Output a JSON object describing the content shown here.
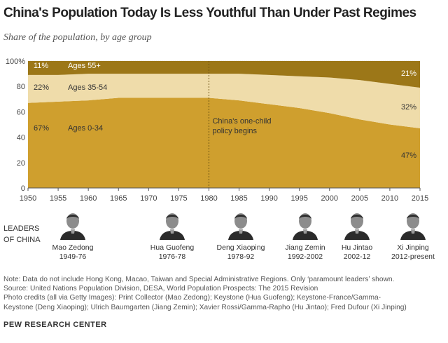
{
  "title": "China's Population Today Is Less Youthful Than Under Past Regimes",
  "subtitle": "Share of the population, by age group",
  "chart_data": {
    "type": "area",
    "stacked": true,
    "x": [
      1950,
      1955,
      1960,
      1965,
      1970,
      1975,
      1980,
      1985,
      1990,
      1995,
      2000,
      2005,
      2010,
      2015
    ],
    "series": [
      {
        "name": "Ages 0-34",
        "color": "#cf9f2e",
        "values": [
          67,
          68,
          69,
          71,
          71,
          71,
          71,
          69,
          66,
          63,
          59,
          54,
          50,
          47
        ]
      },
      {
        "name": "Ages 35-54",
        "color": "#efdcaa",
        "values": [
          22,
          21,
          21,
          19,
          19,
          19,
          19,
          21,
          23,
          25,
          28,
          31,
          32,
          32
        ]
      },
      {
        "name": "Ages 55+",
        "color": "#9c7718",
        "values": [
          11,
          11,
          10,
          10,
          10,
          10,
          10,
          10,
          11,
          12,
          13,
          15,
          18,
          21
        ]
      }
    ],
    "ylim": [
      0,
      100
    ],
    "yticks": [
      "0",
      "20",
      "40",
      "60",
      "80",
      "100%"
    ],
    "xticks": [
      "1950",
      "1955",
      "1960",
      "1965",
      "1970",
      "1975",
      "1980",
      "1985",
      "1990",
      "1995",
      "2000",
      "2005",
      "2010",
      "2015"
    ],
    "start_labels": [
      "67%",
      "22%",
      "11%"
    ],
    "end_labels": [
      "47%",
      "32%",
      "21%"
    ],
    "annotation": {
      "x": 1980,
      "lines": [
        "China's one-child",
        "policy begins"
      ]
    },
    "grid": true
  },
  "leaders_label_lines": [
    "LEADERS",
    "OF CHINA"
  ],
  "leaders": [
    {
      "name": "Mao Zedong",
      "years": "1949-76"
    },
    {
      "name": "Hua Guofeng",
      "years": "1976-78"
    },
    {
      "name": "Deng Xiaoping",
      "years": "1978-92"
    },
    {
      "name": "Jiang Zemin",
      "years": "1992-2002"
    },
    {
      "name": "Hu Jintao",
      "years": "2002-12"
    },
    {
      "name": "Xi Jinping",
      "years": "2012-present"
    }
  ],
  "notes": {
    "note": "Note: Data do not include Hong Kong, Macao, Taiwan and Special Administrative Regions. Only ‘paramount leaders’ shown.",
    "source": "Source: United Nations Population Division, DESA, World Population Prospects: The 2015 Revision",
    "credits_1": "Photo credits (all via Getty Images): Print Collector (Mao Zedong); Keystone (Hua Guofeng); Keystone-France/Gamma-",
    "credits_2": "Keystone (Deng Xiaoping); Ulrich Baumgarten (Jiang Zemin); Xavier Rossi/Gamma-Rapho (Hu Jintao); Fred Dufour (Xi Jinping)"
  },
  "source_org": "PEW RESEARCH CENTER"
}
